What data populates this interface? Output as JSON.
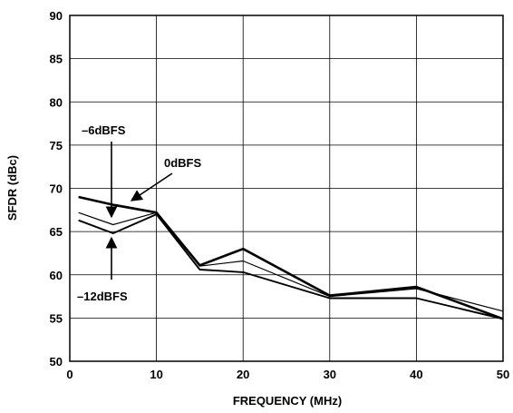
{
  "chart_data": {
    "type": "line",
    "title": "",
    "xlabel": "FREQUENCY (MHz)",
    "ylabel": "SFDR (dBc)",
    "xlim": [
      0,
      50
    ],
    "ylim": [
      50,
      90
    ],
    "x_ticks": [
      "0",
      "10",
      "20",
      "30",
      "40",
      "50"
    ],
    "y_ticks": [
      "50",
      "55",
      "60",
      "65",
      "70",
      "75",
      "80",
      "85",
      "90"
    ],
    "grid": true,
    "series": [
      {
        "name": "0dBFS",
        "x": [
          1,
          5,
          10,
          15,
          20,
          30,
          40,
          50
        ],
        "values": [
          69.0,
          68.1,
          67.2,
          61.1,
          63.0,
          57.6,
          58.6,
          54.9
        ]
      },
      {
        "name": "–6dBFS",
        "x": [
          1,
          5,
          10,
          15,
          20,
          30,
          40,
          50
        ],
        "values": [
          67.2,
          65.8,
          67.2,
          61.0,
          61.6,
          57.5,
          58.4,
          55.8
        ]
      },
      {
        "name": "–12dBFS",
        "x": [
          1,
          5,
          10,
          15,
          20,
          30,
          40,
          50
        ],
        "values": [
          66.3,
          64.8,
          67.0,
          60.6,
          60.3,
          57.3,
          57.3,
          54.9
        ]
      }
    ],
    "annotations": [
      {
        "text": "–6dBFS",
        "series": "–6dBFS"
      },
      {
        "text": "0dBFS",
        "series": "0dBFS"
      },
      {
        "text": "–12dBFS",
        "series": "–12dBFS"
      }
    ]
  }
}
